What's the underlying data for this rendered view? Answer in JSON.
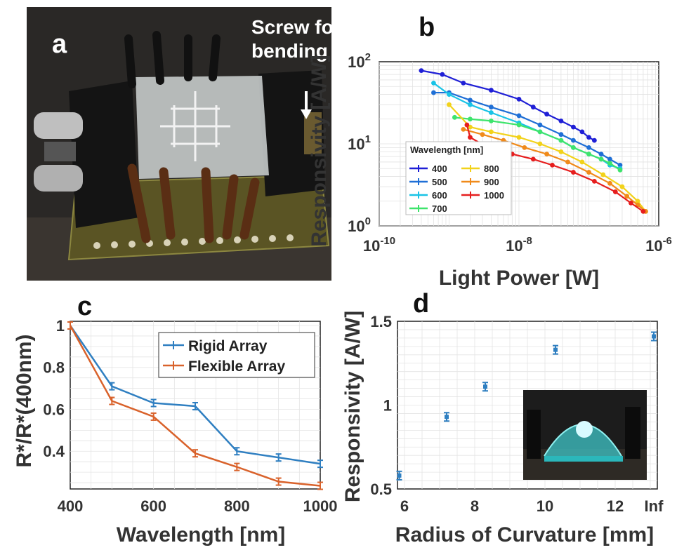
{
  "panel_labels": {
    "a": "a",
    "b": "b",
    "c": "c",
    "d": "d"
  },
  "photo_a": {
    "annotation": "Screw for\nbending",
    "annotation_line1": "Screw for",
    "annotation_line2": "bending"
  },
  "chart_data": [
    {
      "id": "b",
      "type": "line",
      "xscale": "log",
      "yscale": "log",
      "xlabel": "Light Power [W]",
      "ylabel": "Responsivity [A/W]",
      "xlim": [
        1e-10,
        1e-06
      ],
      "ylim": [
        1,
        100
      ],
      "xticks": [
        {
          "value": 1e-10,
          "base": "10",
          "exp": "-10"
        },
        {
          "value": 1e-08,
          "base": "10",
          "exp": "-8"
        },
        {
          "value": 1e-06,
          "base": "10",
          "exp": "-6"
        }
      ],
      "yticks": [
        {
          "value": 1,
          "base": "10",
          "exp": "0"
        },
        {
          "value": 10,
          "base": "10",
          "exp": "1"
        },
        {
          "value": 100,
          "base": "10",
          "exp": "2"
        }
      ],
      "grid": true,
      "legend_title": "Wavelength [nm]",
      "legend_placement": "lower-left",
      "series": [
        {
          "name": "400",
          "color": "#1f1fd6",
          "x": [
            4e-10,
            8e-10,
            1.6e-09,
            4e-09,
            1e-08,
            1.6e-08,
            2.5e-08,
            4e-08,
            6e-08,
            8e-08,
            1e-07,
            1.2e-07
          ],
          "y": [
            78,
            70,
            55,
            45,
            35,
            28,
            23,
            19,
            16,
            14,
            12,
            11
          ]
        },
        {
          "name": "500",
          "color": "#1f6fd6",
          "x": [
            6e-10,
            1e-09,
            2e-09,
            4e-09,
            1e-08,
            2e-08,
            4e-08,
            6e-08,
            1e-07,
            1.5e-07,
            2e-07,
            2.8e-07
          ],
          "y": [
            42,
            42,
            34,
            28,
            22,
            17,
            13,
            11,
            9,
            7.5,
            6.5,
            5.5
          ]
        },
        {
          "name": "600",
          "color": "#19c3e6",
          "x": [
            6e-10,
            1e-09,
            2e-09,
            4e-09,
            1e-08,
            2e-08,
            4e-08,
            6e-08,
            1e-07,
            1.5e-07,
            2e-07,
            2.8e-07
          ],
          "y": [
            55,
            40,
            30,
            24,
            18,
            14,
            11,
            9,
            7.5,
            6.5,
            5.5,
            5
          ]
        },
        {
          "name": "700",
          "color": "#3ee46c",
          "x": [
            1.2e-09,
            2e-09,
            4e-09,
            1e-08,
            2e-08,
            4e-08,
            6e-08,
            1e-07,
            1.5e-07,
            2e-07,
            2.8e-07
          ],
          "y": [
            21,
            20,
            19,
            17,
            14,
            11,
            9,
            7.5,
            6.5,
            5.8,
            4.8
          ]
        },
        {
          "name": "800",
          "color": "#f2d21a",
          "x": [
            1e-09,
            2e-09,
            4e-09,
            1e-08,
            2e-08,
            4e-08,
            8e-08,
            1.6e-07,
            3e-07,
            5e-07,
            6.5e-07
          ],
          "y": [
            30,
            16,
            14,
            12,
            10,
            8,
            6,
            4.2,
            3,
            2,
            1.5
          ]
        },
        {
          "name": "900",
          "color": "#f08a1a",
          "x": [
            1.6e-09,
            3e-09,
            6e-09,
            1.2e-08,
            2.5e-08,
            5e-08,
            1e-07,
            2e-07,
            3.5e-07,
            5e-07,
            6.5e-07
          ],
          "y": [
            15,
            13,
            11,
            9,
            7.5,
            6,
            4.5,
            3.3,
            2.3,
            1.8,
            1.5
          ]
        },
        {
          "name": "1000",
          "color": "#e61e1e",
          "x": [
            1.8e-09,
            2e-09,
            4e-09,
            8e-09,
            1.6e-08,
            3e-08,
            6e-08,
            1.2e-07,
            2.4e-07,
            4e-07,
            6e-07
          ],
          "y": [
            17,
            12,
            8.5,
            7.5,
            6.5,
            5.5,
            4.5,
            3.5,
            2.6,
            1.9,
            1.5
          ]
        }
      ]
    },
    {
      "id": "c",
      "type": "line",
      "xlabel": "Wavelength [nm]",
      "ylabel": "R*/R*(400nm)",
      "xlim": [
        400,
        1000
      ],
      "ylim": [
        0.22,
        1.02
      ],
      "xticks": [
        400,
        600,
        800,
        1000
      ],
      "yticks": [
        0.4,
        0.6,
        0.8,
        1
      ],
      "ytick_labels": [
        "0.4",
        "0.6",
        "0.8",
        "1"
      ],
      "grid": true,
      "legend_placement": "top-right",
      "categories": [
        400,
        500,
        600,
        700,
        800,
        900,
        1000
      ],
      "series": [
        {
          "name": "Rigid Array",
          "color": "#2f7fc1",
          "values": [
            1.0,
            0.71,
            0.63,
            0.615,
            0.4,
            0.37,
            0.34
          ]
        },
        {
          "name": "Flexible Array",
          "color": "#d9622b",
          "values": [
            1.0,
            0.64,
            0.565,
            0.39,
            0.325,
            0.255,
            0.235
          ]
        }
      ]
    },
    {
      "id": "d",
      "type": "scatter",
      "xlabel": "Radius of Curvature [mm]",
      "ylabel": "Responsivity [A/W]",
      "xlim": [
        5.8,
        13.2
      ],
      "ylim": [
        0.5,
        1.5
      ],
      "xticks": [
        {
          "value": 6,
          "label": "6"
        },
        {
          "value": 8,
          "label": "8"
        },
        {
          "value": 10,
          "label": "10"
        },
        {
          "value": 12,
          "label": "12"
        },
        {
          "value": 13.1,
          "label": "Inf"
        }
      ],
      "yticks": [
        {
          "value": 0.5,
          "label": "0.5"
        },
        {
          "value": 1,
          "label": "1"
        },
        {
          "value": 1.5,
          "label": "1.5"
        }
      ],
      "grid": true,
      "color": "#2f7fc1",
      "points": [
        {
          "x": 5.85,
          "y": 0.58
        },
        {
          "x": 7.2,
          "y": 0.93
        },
        {
          "x": 8.3,
          "y": 1.11
        },
        {
          "x": 10.3,
          "y": 1.33
        },
        {
          "x": 13.1,
          "y": 1.41
        }
      ]
    }
  ]
}
